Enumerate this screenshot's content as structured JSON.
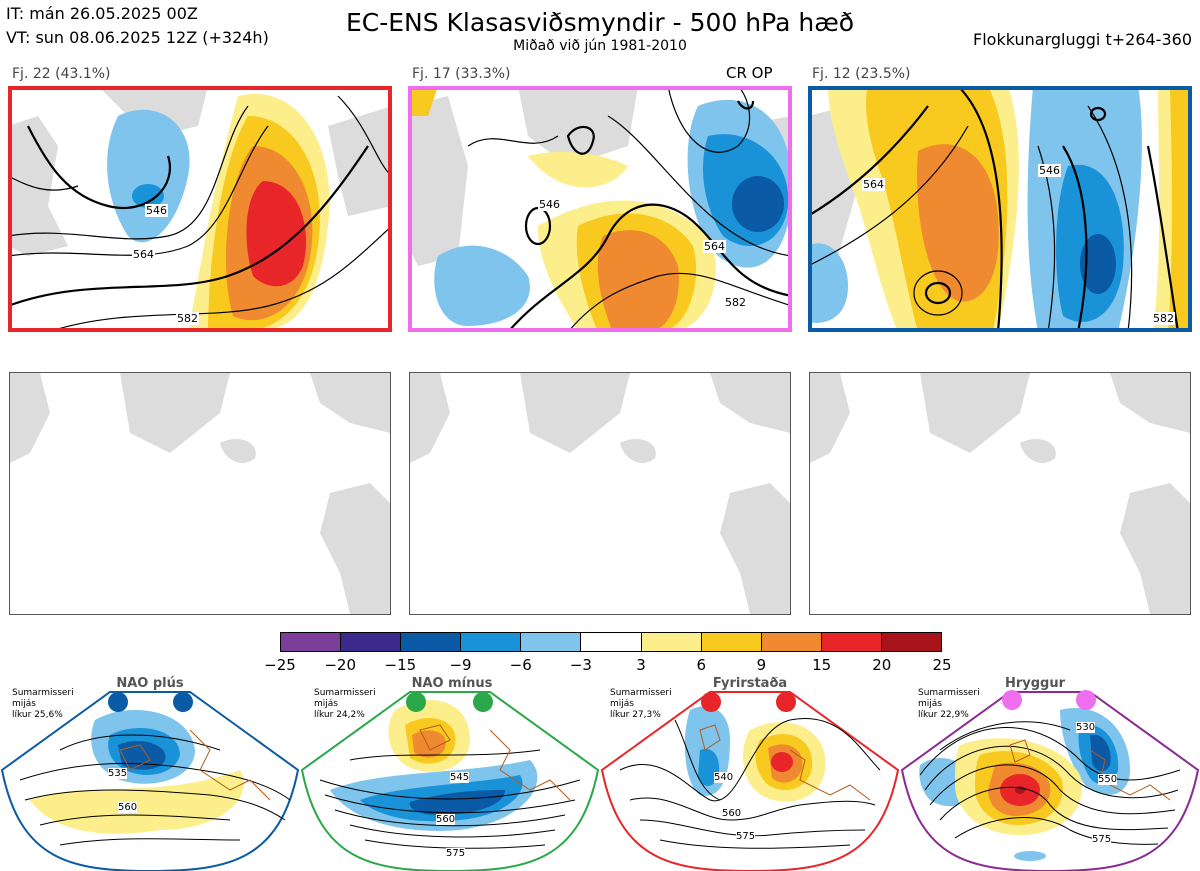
{
  "header": {
    "it_line": "IT: mán 26.05.2025 00Z",
    "vt_line": "VT: sun 08.06.2025 12Z  (+324h)",
    "title": "EC-ENS Klasasviðsmyndir - 500 hPa hæð",
    "subtitle": "Miðað við jún 1981-2010",
    "window": "Flokkunargluggi t+264-360"
  },
  "clusters": [
    {
      "label": "Fj. 22 (43.1%)",
      "border_color": "#e8262a",
      "op_label": ""
    },
    {
      "label": "Fj. 17 (33.3%)",
      "border_color": "#ee6eee",
      "op_label": "CR OP"
    },
    {
      "label": "Fj. 12 (23.5%)",
      "border_color": "#0b5aa6",
      "op_label": ""
    }
  ],
  "contour_labels": [
    "546",
    "564",
    "582"
  ],
  "colorbar": {
    "ticks": [
      "−25",
      "−20",
      "−15",
      "−9",
      "−6",
      "−3",
      "3",
      "6",
      "9",
      "15",
      "20",
      "25"
    ],
    "colors": [
      "#7b3f9a",
      "#3b2a8c",
      "#0b5aa6",
      "#1a92d8",
      "#7ec4ec",
      "#ffffff",
      "#fdee8c",
      "#f8c91e",
      "#f08a30",
      "#e8262a",
      "#a8141c"
    ]
  },
  "regimes": [
    {
      "name": "NAO plús",
      "season": "Sumarmisseri",
      "avg": "mijás",
      "prob": "líkur 25,6%",
      "dot_color": "#0b5aa6",
      "border_color": "#0b5aa6",
      "labels": [
        "535",
        "560"
      ]
    },
    {
      "name": "NAO mínus",
      "season": "Sumarmisseri",
      "avg": "mijás",
      "prob": "líkur 24,2%",
      "dot_color": "#2aa84a",
      "border_color": "#2aa84a",
      "labels": [
        "545",
        "560",
        "575"
      ]
    },
    {
      "name": "Fyrirstaða",
      "season": "Sumarmisseri",
      "avg": "mijás",
      "prob": "líkur 27,3%",
      "dot_color": "#e8262a",
      "border_color": "#e8262a",
      "labels": [
        "540",
        "560",
        "575"
      ]
    },
    {
      "name": "Hryggur",
      "season": "Sumarmisseri",
      "avg": "mijás",
      "prob": "líkur 22,9%",
      "dot_color": "#ee6eee",
      "border_color": "#8a2a92",
      "labels": [
        "530",
        "550",
        "575"
      ]
    }
  ]
}
